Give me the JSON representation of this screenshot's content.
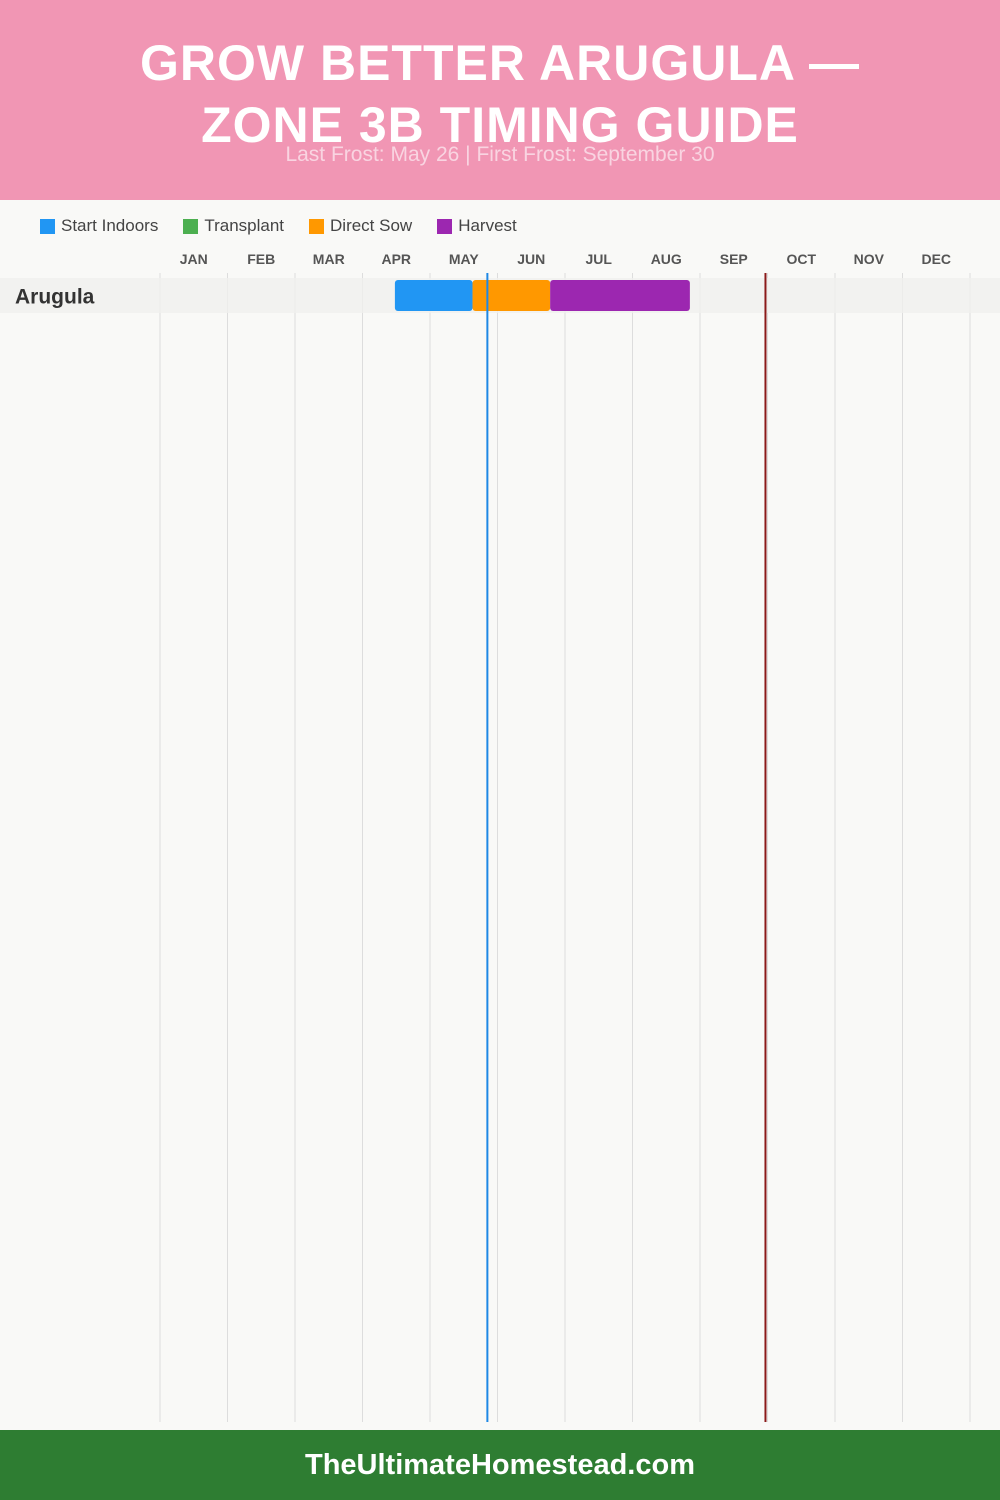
{
  "header": {
    "title_line1": "GROW BETTER ARUGULA —",
    "title_line2": "ZONE 3B TIMING GUIDE",
    "subtitle": "Last Frost: May 26 | First Frost: September 30"
  },
  "legend": [
    {
      "label": "Start Indoors",
      "color": "#2196f3"
    },
    {
      "label": "Transplant",
      "color": "#4caf50"
    },
    {
      "label": "Direct Sow",
      "color": "#ff9800"
    },
    {
      "label": "Harvest",
      "color": "#9c27b0"
    }
  ],
  "chart_data": {
    "type": "bar",
    "subtype": "gantt",
    "categories": [
      "JAN",
      "FEB",
      "MAR",
      "APR",
      "MAY",
      "JUN",
      "JUL",
      "AUG",
      "SEP",
      "OCT",
      "NOV",
      "DEC"
    ],
    "rows": [
      {
        "label": "Arugula",
        "segments": [
          {
            "phase": "Start Indoors",
            "start_month": 4.48,
            "end_month": 5.63
          },
          {
            "phase": "Direct Sow",
            "start_month": 5.63,
            "end_month": 6.78
          },
          {
            "phase": "Harvest",
            "start_month": 6.78,
            "end_month": 8.85
          }
        ]
      }
    ],
    "markers": [
      {
        "name": "Last Frost",
        "month": 5.85,
        "color": "#1e88e5"
      },
      {
        "name": "First Frost",
        "month": 9.97,
        "color": "#8b1a1a"
      }
    ],
    "grid": true
  },
  "footer": {
    "text": "TheUltimateHomestead.com"
  },
  "colors": {
    "header_bg": "#f196b4",
    "footer_bg": "#2e7d32",
    "page_bg": "#f9f9f7"
  }
}
